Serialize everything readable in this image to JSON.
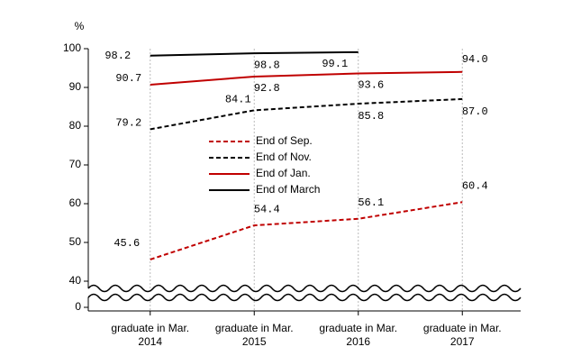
{
  "chart_data": {
    "type": "line",
    "y_unit": "%",
    "categories": [
      "graduate in Mar.\n2014",
      "graduate in Mar.\n2015",
      "graduate in Mar.\n2016",
      "graduate in Mar.\n2017"
    ],
    "series": [
      {
        "name": "End of Sep.",
        "color": "#c00000",
        "dash": true,
        "values": [
          45.6,
          54.4,
          56.1,
          60.4
        ],
        "value_labels": [
          "45.6",
          "54.4",
          "56.1",
          "60.4"
        ]
      },
      {
        "name": "End of Nov.",
        "color": "#000000",
        "dash": true,
        "values": [
          79.2,
          84.1,
          85.8,
          87.0
        ],
        "value_labels": [
          "79.2",
          "84.1",
          "85.8",
          "87.0"
        ]
      },
      {
        "name": "End of Jan.",
        "color": "#c00000",
        "dash": false,
        "values": [
          90.7,
          92.8,
          93.6,
          94.0
        ],
        "value_labels": [
          "90.7",
          "92.8",
          "93.6",
          "94.0"
        ]
      },
      {
        "name": "End of March",
        "color": "#000000",
        "dash": false,
        "values": [
          98.2,
          98.8,
          99.1,
          null
        ],
        "value_labels": [
          "98.2",
          "98.8",
          "99.1",
          null
        ]
      }
    ],
    "ylim": [
      0,
      100
    ],
    "y_break": [
      0,
      40
    ],
    "yticks": [
      0,
      40,
      50,
      60,
      70,
      80,
      90,
      100
    ],
    "grid": true
  }
}
